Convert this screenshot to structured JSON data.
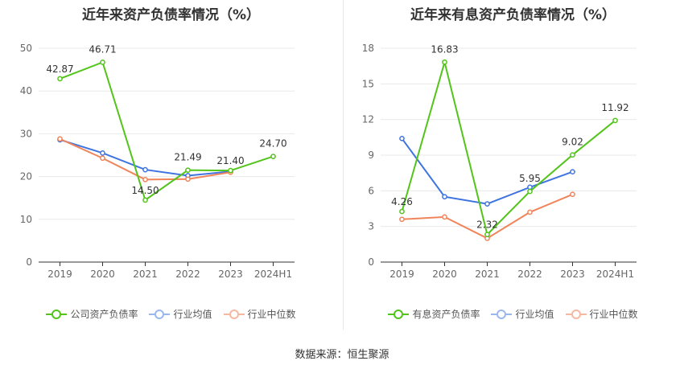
{
  "source_label": "数据来源：恒生聚源",
  "chart_data": [
    {
      "type": "line",
      "title": "近年来资产负债率情况（%）",
      "categories": [
        "2019",
        "2020",
        "2021",
        "2022",
        "2023",
        "2024H1"
      ],
      "ylim": [
        0,
        50
      ],
      "yticks": [
        0,
        10,
        20,
        30,
        40,
        50
      ],
      "grid": true,
      "legend_position": "bottom",
      "series": [
        {
          "name": "公司资产负债率",
          "color": "#52c41a",
          "values": [
            42.87,
            46.71,
            14.5,
            21.49,
            21.4,
            24.7
          ],
          "labels": [
            "42.87",
            "46.71",
            "14.50",
            "21.49",
            "21.40",
            "24.70"
          ],
          "show_labels": true
        },
        {
          "name": "行业均值",
          "color": "#3f74e0",
          "values": [
            28.6,
            25.5,
            21.6,
            20.2,
            21.2,
            null
          ],
          "show_labels": false
        },
        {
          "name": "行业中位数",
          "color": "#f0845a",
          "values": [
            28.8,
            24.3,
            19.3,
            19.4,
            21.0,
            null
          ],
          "show_labels": false
        }
      ]
    },
    {
      "type": "line",
      "title": "近年来有息资产负债率情况（%）",
      "categories": [
        "2019",
        "2020",
        "2021",
        "2022",
        "2023",
        "2024H1"
      ],
      "ylim": [
        0,
        18
      ],
      "yticks": [
        0,
        3,
        6,
        9,
        12,
        15,
        18
      ],
      "grid": true,
      "legend_position": "bottom",
      "series": [
        {
          "name": "有息资产负债率",
          "color": "#52c41a",
          "values": [
            4.26,
            16.83,
            2.32,
            5.95,
            9.02,
            11.92
          ],
          "labels": [
            "4.26",
            "16.83",
            "2.32",
            "5.95",
            "9.02",
            "11.92"
          ],
          "show_labels": true
        },
        {
          "name": "行业均值",
          "color": "#3f74e0",
          "values": [
            10.4,
            5.5,
            4.9,
            6.3,
            7.6,
            null
          ],
          "show_labels": false
        },
        {
          "name": "行业中位数",
          "color": "#f0845a",
          "values": [
            3.6,
            3.8,
            2.0,
            4.2,
            5.7,
            null
          ],
          "show_labels": false
        }
      ]
    }
  ]
}
